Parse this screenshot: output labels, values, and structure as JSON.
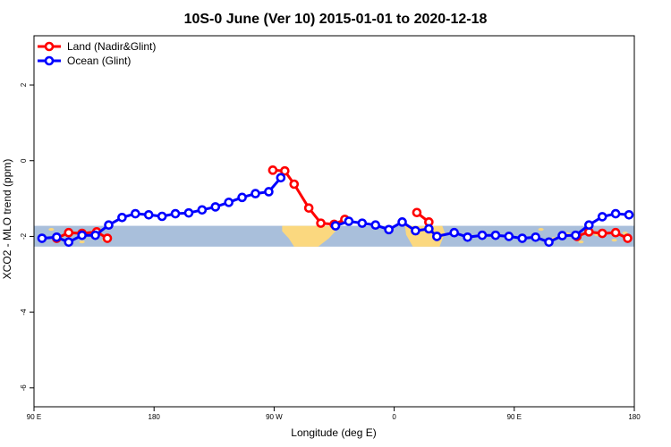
{
  "chart_data": {
    "type": "line",
    "title": "10S-0 June (Ver 10)   2015-01-01 to 2020-12-18",
    "xlabel": "Longitude (deg E)",
    "ylabel": "XCO2 - MLO trend (ppm)",
    "x_ticks": [
      {
        "value": 90,
        "label": "90 E"
      },
      {
        "value": 180,
        "label": "180"
      },
      {
        "value": 270,
        "label": "90 W"
      },
      {
        "value": 360,
        "label": "0"
      },
      {
        "value": 450,
        "label": "90 E"
      },
      {
        "value": 540,
        "label": "180"
      }
    ],
    "y_ticks": [
      {
        "value": 2,
        "label": "2"
      },
      {
        "value": 0,
        "label": "0"
      },
      {
        "value": -2,
        "label": "-2"
      },
      {
        "value": -4,
        "label": "-4"
      },
      {
        "value": -6,
        "label": "-6"
      }
    ],
    "xlim": [
      90,
      540
    ],
    "ylim": [
      -6.5,
      3.3
    ],
    "grid": false,
    "legend_position": "top-left",
    "background_band": {
      "y_range": [
        -2.27,
        -1.72
      ],
      "ocean_color": "#a9bfdb",
      "land_color": "#fbd87f"
    },
    "series": [
      {
        "name": "Land (Nadir&Glint)",
        "color": "#ff0000",
        "segments": [
          [
            [
              107,
              -2.05
            ],
            [
              116,
              -1.9
            ],
            [
              126,
              -1.92
            ],
            [
              137,
              -1.88
            ],
            [
              145,
              -2.05
            ]
          ],
          [
            [
              269,
              -0.25
            ],
            [
              278,
              -0.27
            ],
            [
              285,
              -0.62
            ],
            [
              296,
              -1.25
            ],
            [
              305,
              -1.65
            ],
            [
              315,
              -1.68
            ],
            [
              323,
              -1.55
            ]
          ],
          [
            [
              377,
              -1.37
            ],
            [
              386,
              -1.62
            ]
          ],
          [
            [
              497,
              -2.0
            ],
            [
              506,
              -1.88
            ],
            [
              516,
              -1.92
            ],
            [
              526,
              -1.9
            ],
            [
              535,
              -2.05
            ]
          ]
        ]
      },
      {
        "name": "Ocean (Glint)",
        "color": "#0000ff",
        "segments": [
          [
            [
              96,
              -2.05
            ],
            [
              107,
              -2.02
            ],
            [
              116,
              -2.15
            ],
            [
              126,
              -1.97
            ],
            [
              136,
              -1.97
            ],
            [
              146,
              -1.7
            ],
            [
              156,
              -1.5
            ],
            [
              166,
              -1.4
            ],
            [
              176,
              -1.43
            ],
            [
              186,
              -1.47
            ],
            [
              196,
              -1.4
            ],
            [
              206,
              -1.38
            ],
            [
              216,
              -1.3
            ],
            [
              226,
              -1.22
            ],
            [
              236,
              -1.1
            ],
            [
              246,
              -0.97
            ],
            [
              256,
              -0.87
            ],
            [
              266,
              -0.82
            ],
            [
              275,
              -0.45
            ]
          ],
          [
            [
              316,
              -1.72
            ],
            [
              326,
              -1.6
            ],
            [
              336,
              -1.65
            ],
            [
              346,
              -1.7
            ],
            [
              356,
              -1.82
            ],
            [
              366,
              -1.62
            ],
            [
              376,
              -1.85
            ],
            [
              386,
              -1.8
            ],
            [
              392,
              -2.0
            ],
            [
              405,
              -1.9
            ],
            [
              415,
              -2.02
            ],
            [
              426,
              -1.97
            ],
            [
              436,
              -1.97
            ],
            [
              446,
              -2.0
            ],
            [
              456,
              -2.05
            ],
            [
              466,
              -2.02
            ],
            [
              476,
              -2.15
            ],
            [
              486,
              -1.98
            ],
            [
              496,
              -1.97
            ],
            [
              506,
              -1.7
            ],
            [
              516,
              -1.48
            ],
            [
              526,
              -1.4
            ],
            [
              536,
              -1.43
            ]
          ]
        ]
      }
    ]
  }
}
